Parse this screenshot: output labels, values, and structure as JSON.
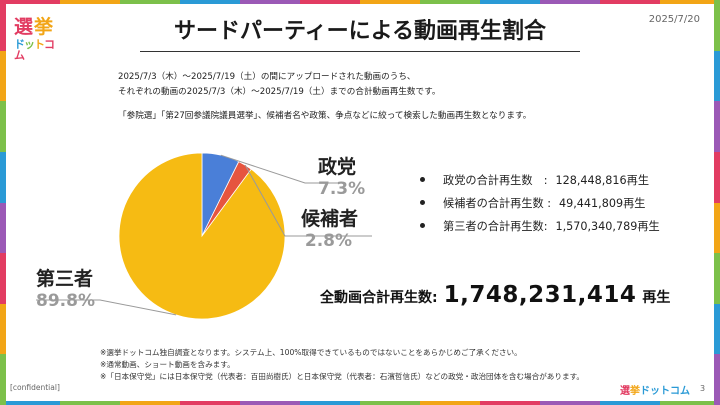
{
  "header": {
    "logo_line1_a": "選",
    "logo_line1_b": "挙",
    "logo_line2": [
      "ド",
      "ッ",
      "ト",
      "コム"
    ],
    "title": "サードパーティーによる動画再生割合",
    "date": "2025/7/20"
  },
  "description": {
    "line1": "2025/7/3（木）～2025/7/19（土）の間にアップロードされた動画のうち、",
    "line2": "それぞれの動画の2025/7/3（木）～2025/7/19（土）までの合計動画再生数です。",
    "line3": "「参院選」「第27回参議院議員選挙」、候補者名や政策、争点などに絞って検索した動画再生数となります。"
  },
  "chart_data": {
    "type": "pie",
    "categories": [
      "政党",
      "候補者",
      "第三者"
    ],
    "values": [
      7.3,
      2.8,
      89.8
    ],
    "value_labels": [
      "7.3%",
      "2.8%",
      "89.8%"
    ],
    "colors": [
      "#4a7fd8",
      "#e6553f",
      "#f6bb13"
    ],
    "title": ""
  },
  "stats": [
    {
      "label": "政党の合計再生数　:",
      "value": "128,448,816再生"
    },
    {
      "label": "候補者の合計再生数 :",
      "value": "49,441,809再生"
    },
    {
      "label": "第三者の合計再生数:",
      "value": "1,570,340,789再生"
    }
  ],
  "total": {
    "label": "全動画合計再生数:",
    "number": "1,748,231,414",
    "unit": "再生"
  },
  "notes": {
    "n1": "※選挙ドットコム独自調査となります。システム上、100%取得できているものではないことをあらかじめご了承ください。",
    "n2": "※通常動画、ショート動画を含みます。",
    "n3": "※「日本保守党」には日本保守党（代表者：百田尚樹氏）と日本保守党（代表者：石濱哲信氏）などの政党・政治団体を含む場合があります。"
  },
  "footer": {
    "confidential": "[confidential]",
    "logo_a": "選",
    "logo_b": "挙",
    "logo_c": "ドットコム",
    "page": "3"
  },
  "colors": {
    "stripe": [
      "#e23c62",
      "#f2a516",
      "#7cc04a",
      "#2a9ad6",
      "#9b59b6",
      "#e23c62",
      "#f2a516",
      "#7cc04a",
      "#2a9ad6",
      "#9b59b6",
      "#e23c62",
      "#f2a516"
    ]
  }
}
